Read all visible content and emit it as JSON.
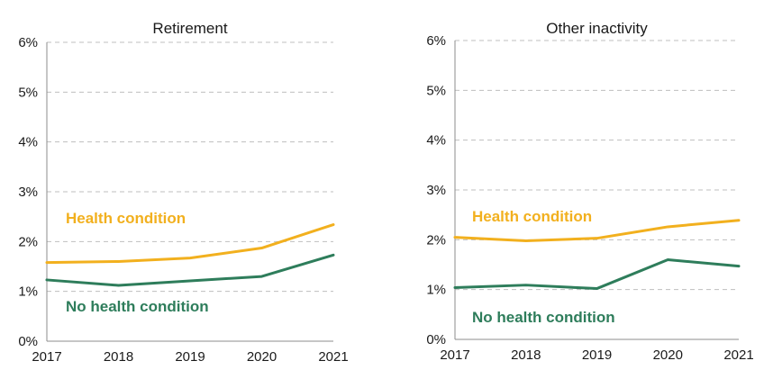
{
  "chart_data": [
    {
      "type": "line",
      "title": "Retirement",
      "categories": [
        "2017",
        "2018",
        "2019",
        "2020",
        "2021"
      ],
      "ylim": [
        0,
        6
      ],
      "yticks": [
        "0%",
        "1%",
        "2%",
        "3%",
        "4%",
        "5%",
        "6%"
      ],
      "grid": true,
      "series": [
        {
          "name": "Health condition",
          "color": "#f2b01e",
          "values": [
            1.58,
            1.6,
            1.67,
            1.87,
            2.34
          ]
        },
        {
          "name": "No health condition",
          "color": "#2e7d5b",
          "values": [
            1.23,
            1.12,
            1.21,
            1.3,
            1.73
          ]
        }
      ]
    },
    {
      "type": "line",
      "title": "Other inactivity",
      "categories": [
        "2017",
        "2018",
        "2019",
        "2020",
        "2021"
      ],
      "ylim": [
        0,
        6
      ],
      "yticks": [
        "0%",
        "1%",
        "2%",
        "3%",
        "4%",
        "5%",
        "6%"
      ],
      "grid": true,
      "series": [
        {
          "name": "Health condition",
          "color": "#f2b01e",
          "values": [
            2.05,
            1.98,
            2.03,
            2.26,
            2.39
          ]
        },
        {
          "name": "No health condition",
          "color": "#2e7d5b",
          "values": [
            1.04,
            1.09,
            1.02,
            1.6,
            1.47
          ]
        }
      ]
    }
  ]
}
